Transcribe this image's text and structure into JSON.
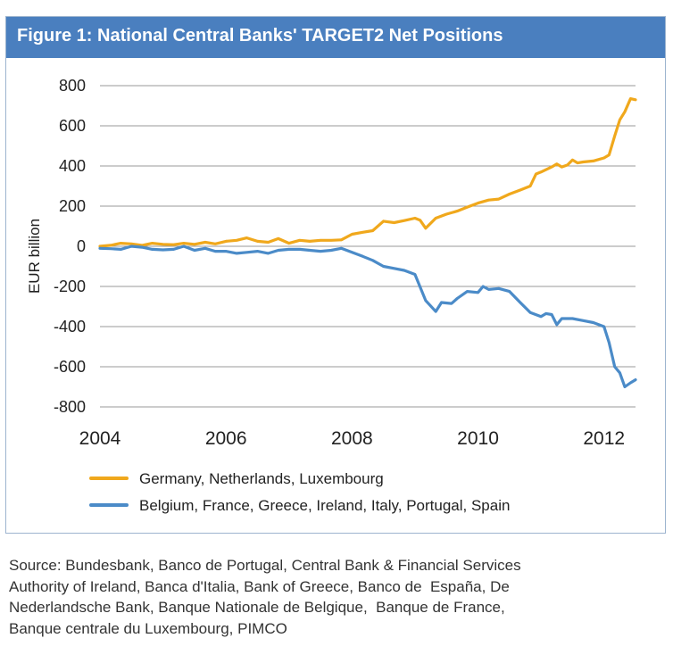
{
  "figure": {
    "title": "Figure 1: National Central Banks' TARGET2 Net Positions"
  },
  "colors": {
    "title_bar": "#4a7fbf",
    "series_1": "#f0a81c",
    "series_2": "#4b8bc8",
    "grid": "#9a9a9a"
  },
  "chart_data": {
    "type": "line",
    "title": "Figure 1: National Central Banks' TARGET2 Net Positions",
    "xlabel": "",
    "ylabel": "EUR billion",
    "xlim": [
      2004,
      2012.5
    ],
    "ylim": [
      -800,
      800
    ],
    "x_ticks": [
      "2004",
      "2006",
      "2008",
      "2010",
      "2012"
    ],
    "y_ticks": [
      "800",
      "600",
      "400",
      "200",
      "0",
      "-200",
      "-400",
      "-600",
      "-800"
    ],
    "grid": "horizontal",
    "legend_position": "bottom",
    "series": [
      {
        "name": "Germany, Netherlands, Luxembourg",
        "color": "#f0a81c",
        "points": [
          [
            2004.0,
            0
          ],
          [
            2004.17,
            5
          ],
          [
            2004.33,
            15
          ],
          [
            2004.5,
            12
          ],
          [
            2004.67,
            5
          ],
          [
            2004.83,
            15
          ],
          [
            2005.0,
            10
          ],
          [
            2005.17,
            8
          ],
          [
            2005.33,
            15
          ],
          [
            2005.5,
            10
          ],
          [
            2005.67,
            20
          ],
          [
            2005.83,
            12
          ],
          [
            2006.0,
            25
          ],
          [
            2006.17,
            30
          ],
          [
            2006.33,
            42
          ],
          [
            2006.5,
            25
          ],
          [
            2006.67,
            20
          ],
          [
            2006.83,
            38
          ],
          [
            2007.0,
            15
          ],
          [
            2007.17,
            30
          ],
          [
            2007.33,
            25
          ],
          [
            2007.5,
            30
          ],
          [
            2007.67,
            30
          ],
          [
            2007.83,
            32
          ],
          [
            2008.0,
            60
          ],
          [
            2008.17,
            70
          ],
          [
            2008.33,
            78
          ],
          [
            2008.5,
            125
          ],
          [
            2008.67,
            118
          ],
          [
            2008.83,
            128
          ],
          [
            2009.0,
            140
          ],
          [
            2009.08,
            130
          ],
          [
            2009.17,
            90
          ],
          [
            2009.33,
            140
          ],
          [
            2009.5,
            160
          ],
          [
            2009.67,
            175
          ],
          [
            2009.83,
            195
          ],
          [
            2010.0,
            215
          ],
          [
            2010.17,
            230
          ],
          [
            2010.33,
            235
          ],
          [
            2010.5,
            260
          ],
          [
            2010.67,
            280
          ],
          [
            2010.83,
            300
          ],
          [
            2010.92,
            360
          ],
          [
            2011.0,
            370
          ],
          [
            2011.17,
            395
          ],
          [
            2011.25,
            410
          ],
          [
            2011.33,
            395
          ],
          [
            2011.42,
            405
          ],
          [
            2011.5,
            430
          ],
          [
            2011.58,
            415
          ],
          [
            2011.67,
            420
          ],
          [
            2011.83,
            425
          ],
          [
            2012.0,
            440
          ],
          [
            2012.08,
            455
          ],
          [
            2012.17,
            550
          ],
          [
            2012.25,
            630
          ],
          [
            2012.33,
            670
          ],
          [
            2012.42,
            735
          ],
          [
            2012.5,
            730
          ]
        ]
      },
      {
        "name": "Belgium, France, Greece, Ireland, Italy, Portugal, Spain",
        "color": "#4b8bc8",
        "points": [
          [
            2004.0,
            -10
          ],
          [
            2004.17,
            -12
          ],
          [
            2004.33,
            -15
          ],
          [
            2004.5,
            0
          ],
          [
            2004.67,
            -5
          ],
          [
            2004.83,
            -15
          ],
          [
            2005.0,
            -18
          ],
          [
            2005.17,
            -15
          ],
          [
            2005.33,
            0
          ],
          [
            2005.5,
            -20
          ],
          [
            2005.67,
            -10
          ],
          [
            2005.83,
            -25
          ],
          [
            2006.0,
            -25
          ],
          [
            2006.17,
            -35
          ],
          [
            2006.33,
            -30
          ],
          [
            2006.5,
            -25
          ],
          [
            2006.67,
            -35
          ],
          [
            2006.83,
            -20
          ],
          [
            2007.0,
            -15
          ],
          [
            2007.17,
            -15
          ],
          [
            2007.33,
            -20
          ],
          [
            2007.5,
            -25
          ],
          [
            2007.67,
            -20
          ],
          [
            2007.83,
            -10
          ],
          [
            2008.0,
            -30
          ],
          [
            2008.17,
            -50
          ],
          [
            2008.33,
            -70
          ],
          [
            2008.5,
            -100
          ],
          [
            2008.67,
            -110
          ],
          [
            2008.83,
            -120
          ],
          [
            2009.0,
            -140
          ],
          [
            2009.17,
            -270
          ],
          [
            2009.33,
            -325
          ],
          [
            2009.42,
            -280
          ],
          [
            2009.58,
            -285
          ],
          [
            2009.67,
            -260
          ],
          [
            2009.83,
            -225
          ],
          [
            2010.0,
            -230
          ],
          [
            2010.08,
            -200
          ],
          [
            2010.17,
            -215
          ],
          [
            2010.33,
            -210
          ],
          [
            2010.5,
            -225
          ],
          [
            2010.67,
            -280
          ],
          [
            2010.83,
            -330
          ],
          [
            2011.0,
            -350
          ],
          [
            2011.08,
            -335
          ],
          [
            2011.17,
            -340
          ],
          [
            2011.25,
            -390
          ],
          [
            2011.33,
            -360
          ],
          [
            2011.5,
            -360
          ],
          [
            2011.67,
            -370
          ],
          [
            2011.83,
            -380
          ],
          [
            2012.0,
            -400
          ],
          [
            2012.08,
            -480
          ],
          [
            2012.17,
            -600
          ],
          [
            2012.25,
            -630
          ],
          [
            2012.33,
            -700
          ],
          [
            2012.42,
            -680
          ],
          [
            2012.5,
            -665
          ]
        ]
      }
    ]
  },
  "source": {
    "lines": [
      "Source: Bundesbank, Banco de Portugal, Central Bank & Financial Services",
      "Authority of Ireland, Banca d'Italia, Bank of Greece, Banco de  España, De",
      "Nederlandsche Bank, Banque Nationale de Belgique,  Banque de France,",
      "Banque centrale du Luxembourg, PIMCO"
    ]
  }
}
